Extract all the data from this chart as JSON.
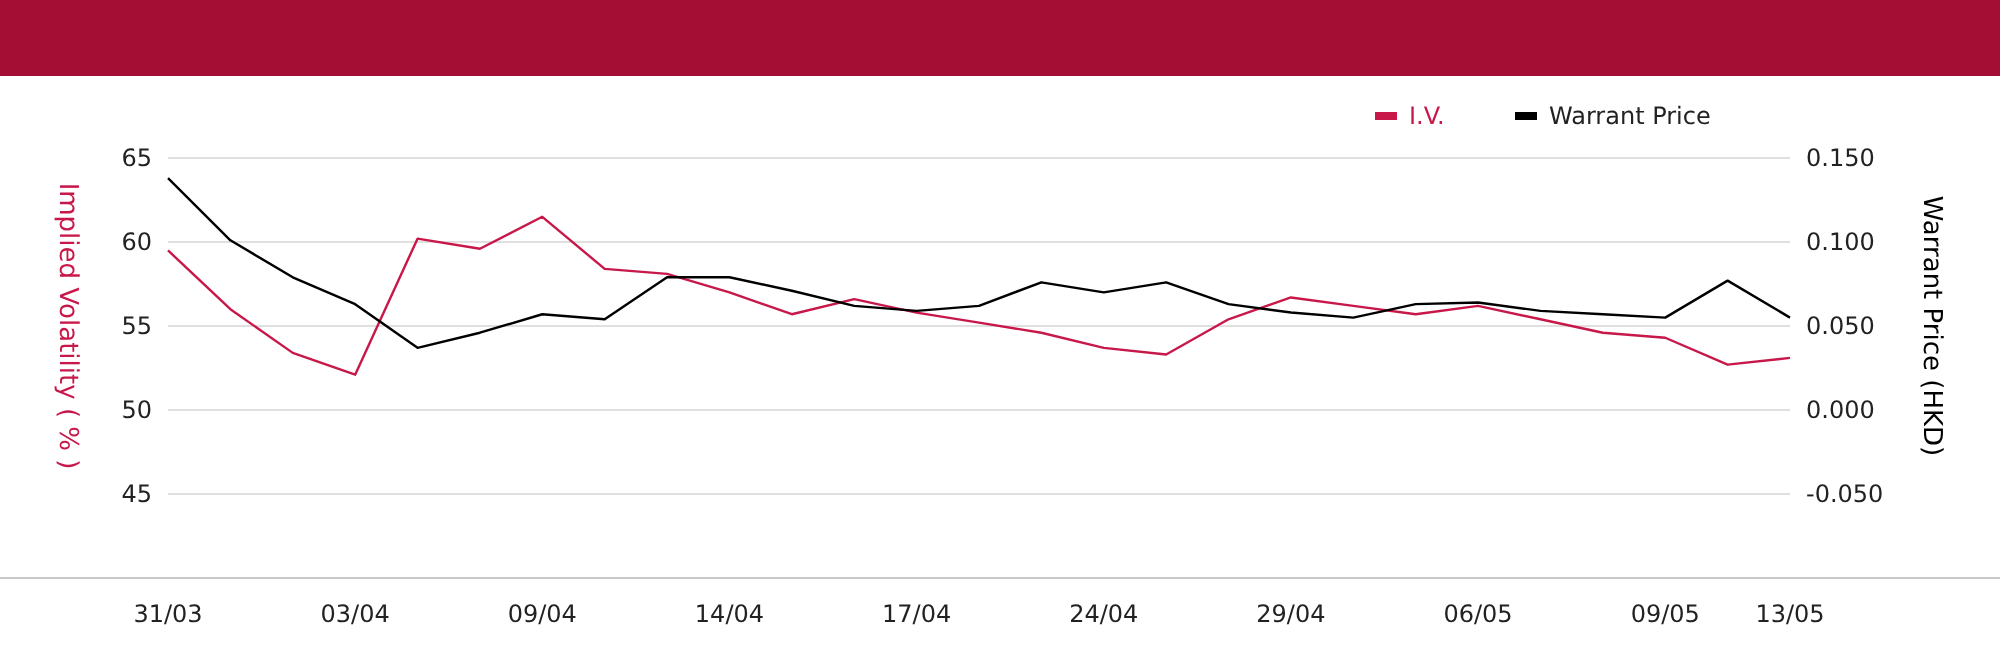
{
  "chart_data": {
    "type": "line",
    "xlabel": null,
    "ylabel": "Implied Volatility ( % )",
    "y2label": "Warrant Price (HKD)",
    "categories": [
      "31/03",
      null,
      null,
      "03/04",
      null,
      null,
      "09/04",
      null,
      null,
      "14/04",
      null,
      null,
      "17/04",
      null,
      null,
      "24/04",
      null,
      null,
      "29/04",
      null,
      null,
      "06/05",
      null,
      null,
      "09/05",
      null,
      "13/05"
    ],
    "series": [
      {
        "name": "I.V.",
        "color": "#c8184a",
        "values": [
          59.5,
          56.0,
          53.4,
          52.1,
          60.2,
          59.6,
          61.5,
          58.4,
          58.1,
          57.0,
          55.7,
          56.6,
          55.8,
          55.2,
          54.6,
          53.7,
          53.3,
          55.4,
          56.7,
          56.2,
          55.7,
          56.2,
          55.4,
          54.6,
          54.3,
          52.7,
          53.1
        ]
      },
      {
        "name": "Warrant Price",
        "color": "#000000",
        "axis": "y2",
        "values": [
          0.138,
          0.101,
          0.079,
          0.063,
          0.037,
          0.046,
          0.057,
          0.054,
          0.079,
          0.079,
          0.071,
          0.062,
          0.059,
          0.062,
          0.076,
          0.07,
          0.076,
          0.063,
          0.058,
          0.055,
          0.063,
          0.064,
          0.059,
          0.057,
          0.055,
          0.077,
          0.055
        ]
      }
    ],
    "ylim": [
      40,
      65
    ],
    "yticks": [
      45,
      50,
      55,
      60,
      65
    ],
    "y2lim": [
      -0.1,
      0.15
    ],
    "y2ticks": [
      {
        "value": -0.05,
        "label": "-0.050"
      },
      {
        "value": 0,
        "label": "0.000"
      },
      {
        "value": 0.05,
        "label": "0.050"
      },
      {
        "value": 0.1,
        "label": "0.100"
      },
      {
        "value": 0.15,
        "label": "0.150"
      }
    ],
    "grid": "y",
    "legend": "top right",
    "marker": "none",
    "line_style": "solid"
  }
}
